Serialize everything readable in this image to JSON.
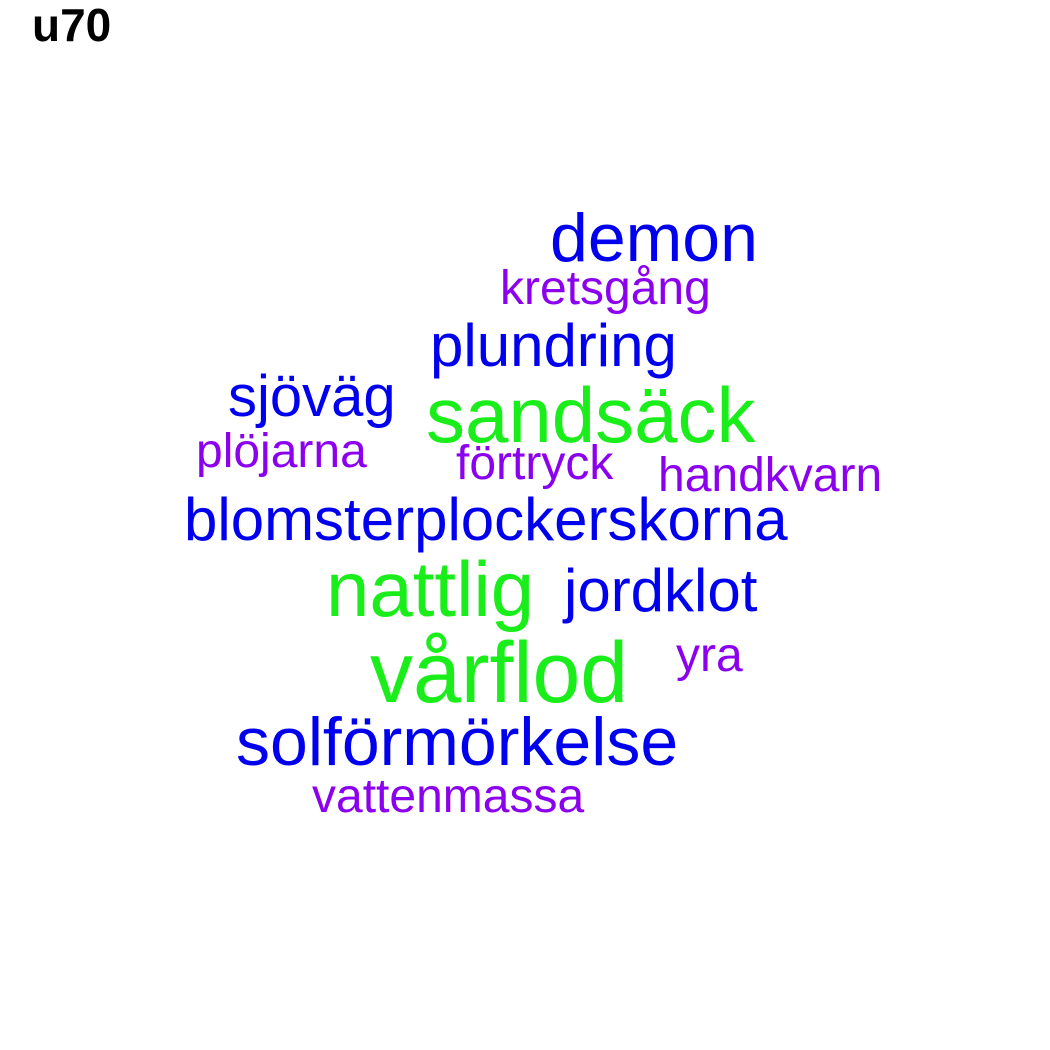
{
  "title": "u70",
  "colors": {
    "blue": "#0000EE",
    "green": "#1AEE1A",
    "purple": "#8B00EE",
    "title": "#000000",
    "background": "#FFFFFF"
  },
  "words": {
    "demon": {
      "text": "demon",
      "color": "blue"
    },
    "kretsgang": {
      "text": "kretsgång",
      "color": "purple"
    },
    "plundring": {
      "text": "plundring",
      "color": "blue"
    },
    "sjovag": {
      "text": "sjöväg",
      "color": "blue"
    },
    "sandsack": {
      "text": "sandsäck",
      "color": "green"
    },
    "plojarna": {
      "text": "plöjarna",
      "color": "purple"
    },
    "fortryck": {
      "text": "förtryck",
      "color": "purple"
    },
    "handkvarn": {
      "text": "handkvarn",
      "color": "purple"
    },
    "blomsterplockerskorna": {
      "text": "blomsterplockerskorna",
      "color": "blue"
    },
    "nattlig": {
      "text": "nattlig",
      "color": "green"
    },
    "jordklot": {
      "text": "jordklot",
      "color": "blue"
    },
    "yra": {
      "text": "yra",
      "color": "purple"
    },
    "varflod": {
      "text": "vårflod",
      "color": "green"
    },
    "solformorkelse": {
      "text": "solförmörkelse",
      "color": "blue"
    },
    "vattenmassa": {
      "text": "vattenmassa",
      "color": "purple"
    }
  }
}
